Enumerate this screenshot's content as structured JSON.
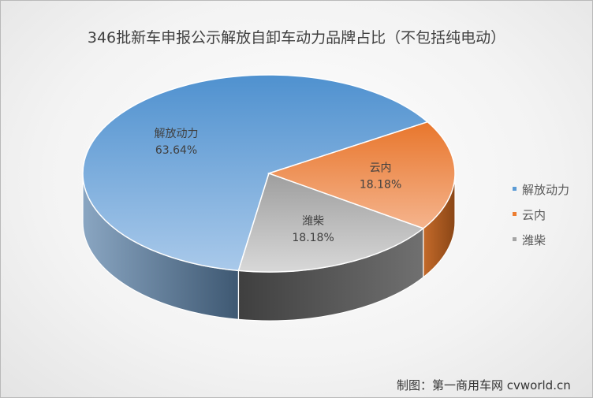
{
  "title": "346批新车申报公示解放自卸车动力品牌占比（不包括纯电动）",
  "credit": "制图：第一商用车网 cvworld.cn",
  "chart_data": {
    "type": "pie",
    "title": "346批新车申报公示解放自卸车动力品牌占比（不包括纯电动）",
    "three_d": true,
    "legend_position": "right",
    "slices": [
      {
        "label": "解放动力",
        "value": 63.64,
        "value_label": "63.64%",
        "color": "#5b9bd5"
      },
      {
        "label": "云内",
        "value": 18.18,
        "value_label": "18.18%",
        "color": "#ed7d31"
      },
      {
        "label": "潍柴",
        "value": 18.18,
        "value_label": "18.18%",
        "color": "#a5a5a5"
      }
    ]
  }
}
